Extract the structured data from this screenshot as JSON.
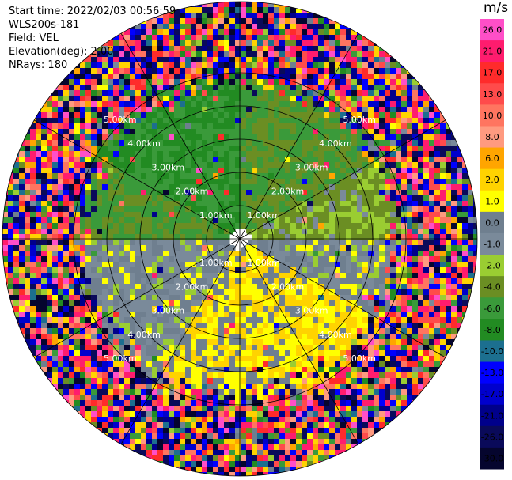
{
  "header": {
    "start_time": "Start time: 2022/02/03 00:56:59",
    "instrument": "WLS200s-181",
    "field": "Field: VEL",
    "elevation": "Elevation(deg): 2.00",
    "nrays": "NRays: 180"
  },
  "chart_data": {
    "type": "heatmap",
    "projection": "polar-ppi",
    "field": "VEL",
    "units": "m/s",
    "range_rings_km": [
      1.0,
      2.0,
      3.0,
      4.0,
      5.0
    ],
    "ring_labels": [
      "1.00km",
      "2.00km",
      "3.00km",
      "4.00km",
      "5.00km"
    ],
    "max_range_km": 6.9,
    "n_rays": 180,
    "colorbar": {
      "ticks": [
        26.0,
        21.0,
        17.0,
        13.0,
        10.0,
        8.0,
        6.0,
        2.0,
        1.0,
        0.0,
        -1.0,
        -2.0,
        -4.0,
        -6.0,
        -8.0,
        -10.0,
        -13.0,
        -17.0,
        -21.0,
        -26.0,
        -30.0
      ],
      "tick_labels": [
        "26.0",
        "21.0",
        "17.0",
        "13.0",
        "10.0",
        "8.0",
        "6.0",
        "2.0",
        "1.0",
        "0.0",
        "-1.0",
        "-2.0",
        "-4.0",
        "-6.0",
        "-8.0",
        "-10.0",
        "-13.0",
        "-17.0",
        "-21.0",
        "-26.0",
        "-30.0"
      ],
      "colors": [
        "#ff4fc8",
        "#ff1c6e",
        "#ff2b2b",
        "#ff4b4b",
        "#ff7560",
        "#ff9a80",
        "#ffa500",
        "#ffd300",
        "#ffff00",
        "#6f7f8f",
        "#7a8a9a",
        "#9acd32",
        "#6b8e23",
        "#3a9a3a",
        "#228b22",
        "#1c6f8f",
        "#0000ff",
        "#0000cd",
        "#00008b",
        "#0a0a5a",
        "#05052e"
      ]
    },
    "sectors": [
      {
        "az_from": 0,
        "az_to": 60,
        "velocity_ms": -4.0
      },
      {
        "az_from": 60,
        "az_to": 90,
        "velocity_ms": -2.0
      },
      {
        "az_from": 90,
        "az_to": 120,
        "velocity_ms": 0.0
      },
      {
        "az_from": 120,
        "az_to": 150,
        "velocity_ms": 2.0
      },
      {
        "az_from": 150,
        "az_to": 210,
        "velocity_ms": 1.5
      },
      {
        "az_from": 210,
        "az_to": 245,
        "velocity_ms": 0.0
      },
      {
        "az_from": 245,
        "az_to": 270,
        "velocity_ms": 0.0
      },
      {
        "az_from": 270,
        "az_to": 300,
        "velocity_ms": -4.0
      },
      {
        "az_from": 300,
        "az_to": 360,
        "velocity_ms": -6.0
      }
    ],
    "noise_start_km": 4.3
  }
}
